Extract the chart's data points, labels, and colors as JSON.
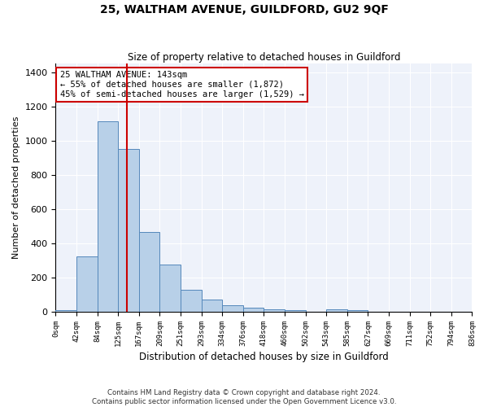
{
  "title": "25, WALTHAM AVENUE, GUILDFORD, GU2 9QF",
  "subtitle": "Size of property relative to detached houses in Guildford",
  "xlabel": "Distribution of detached houses by size in Guildford",
  "ylabel": "Number of detached properties",
  "footer_line1": "Contains HM Land Registry data © Crown copyright and database right 2024.",
  "footer_line2": "Contains public sector information licensed under the Open Government Licence v3.0.",
  "annotation_title": "25 WALTHAM AVENUE: 143sqm",
  "annotation_line2": "← 55% of detached houses are smaller (1,872)",
  "annotation_line3": "45% of semi-detached houses are larger (1,529) →",
  "bar_color": "#b8d0e8",
  "bar_edge_color": "#5588bb",
  "line_color": "#cc0000",
  "annotation_box_color": "#cc0000",
  "background_color": "#eef2fa",
  "grid_color": "#ffffff",
  "bins": [
    0,
    42,
    84,
    125,
    167,
    209,
    251,
    293,
    334,
    376,
    418,
    460,
    502,
    543,
    585,
    627,
    669,
    711,
    752,
    794,
    836
  ],
  "bin_labels": [
    "0sqm",
    "42sqm",
    "84sqm",
    "125sqm",
    "167sqm",
    "209sqm",
    "251sqm",
    "293sqm",
    "334sqm",
    "376sqm",
    "418sqm",
    "460sqm",
    "502sqm",
    "543sqm",
    "585sqm",
    "627sqm",
    "669sqm",
    "711sqm",
    "752sqm",
    "794sqm",
    "836sqm"
  ],
  "bar_heights": [
    10,
    325,
    1115,
    950,
    465,
    275,
    130,
    70,
    40,
    25,
    15,
    10,
    0,
    15,
    10,
    0,
    0,
    0,
    0,
    0
  ],
  "property_size": 143,
  "ylim": [
    0,
    1450
  ],
  "yticks": [
    0,
    200,
    400,
    600,
    800,
    1000,
    1200,
    1400
  ],
  "figsize": [
    6.0,
    5.0
  ],
  "dpi": 100
}
